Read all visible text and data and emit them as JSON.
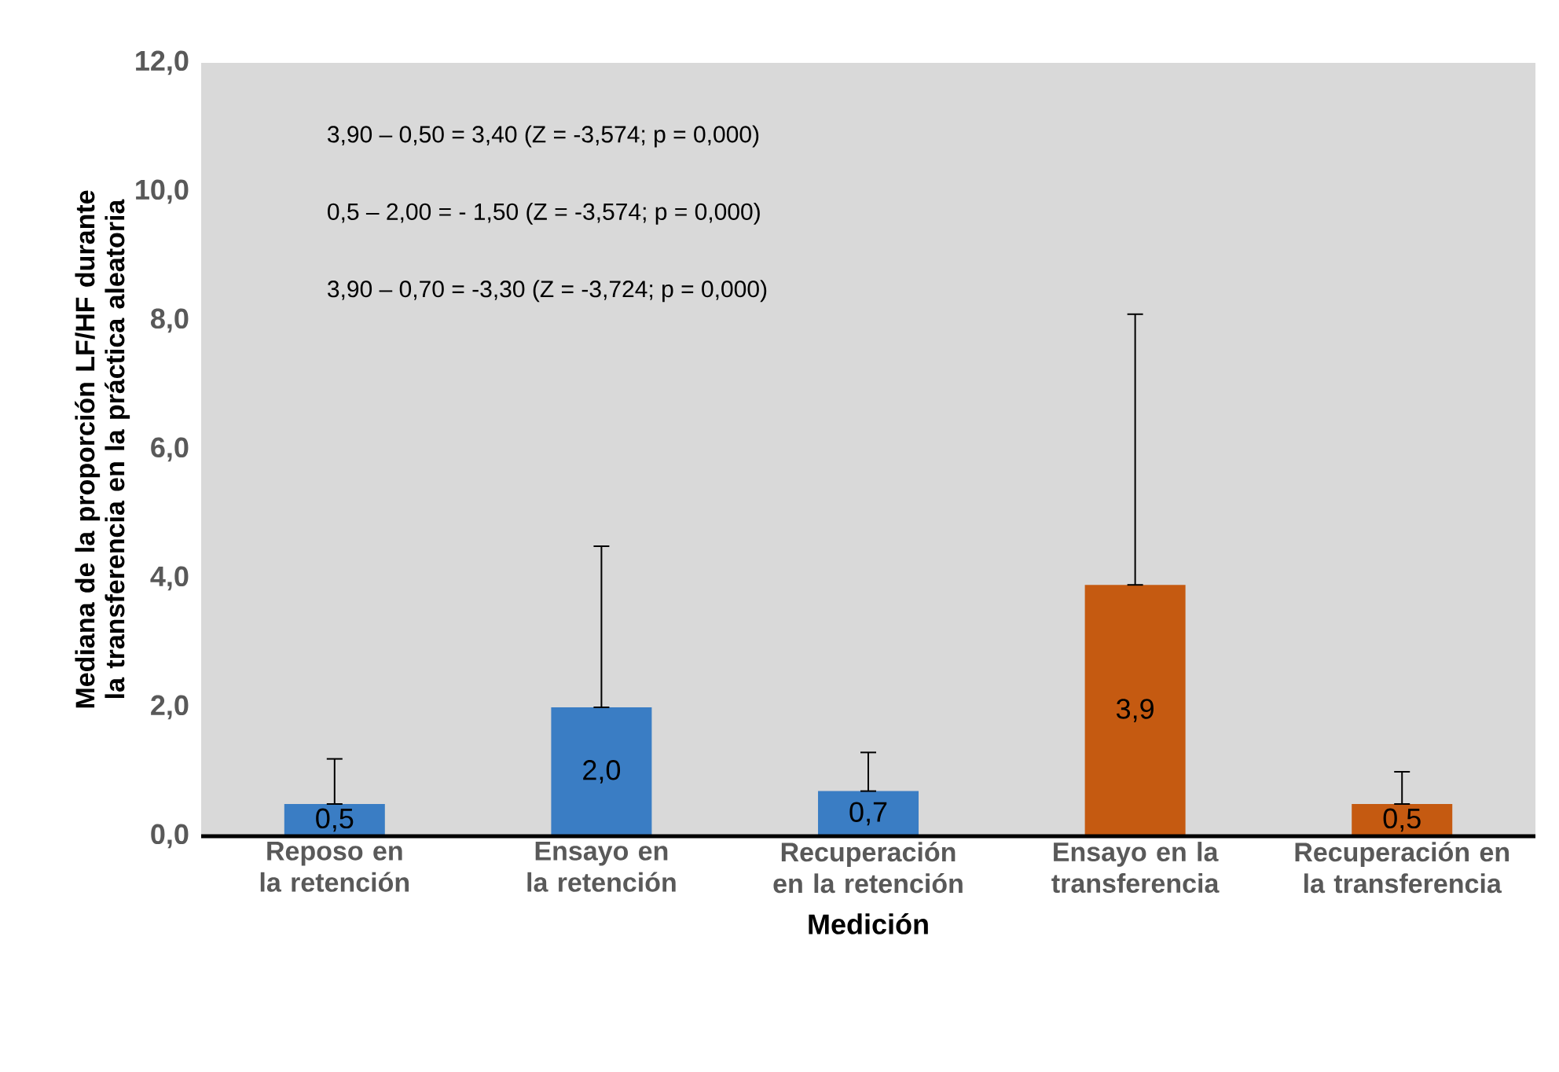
{
  "chart_data": {
    "type": "bar",
    "xlabel": "Medición",
    "ylabel": "Mediana de la proporción LF/HF durante la transferencia en la práctica aleatoria",
    "categories": [
      "Reposo en la retención",
      "Ensayo en la retención",
      "Recuperación en la retención",
      "Ensayo en la transferencia",
      "Recuperación en la transferencia"
    ],
    "values": [
      0.5,
      2.0,
      0.7,
      3.9,
      0.5
    ],
    "colors": [
      "#3a7dc4",
      "#3a7dc4",
      "#3a7dc4",
      "#c55a11",
      "#c55a11"
    ],
    "errors": [
      [
        0.5,
        1.2
      ],
      [
        2.0,
        4.5
      ],
      [
        0.7,
        1.3
      ],
      [
        3.9,
        8.1
      ],
      [
        0.5,
        1.0
      ]
    ],
    "value_labels": [
      "0,5",
      "2,0",
      "0,7",
      "3,9",
      "0,5"
    ],
    "ylim": [
      0,
      12
    ],
    "yticks": [
      {
        "value": 0,
        "label": "0,0"
      },
      {
        "value": 2,
        "label": "2,0"
      },
      {
        "value": 4,
        "label": "4,0"
      },
      {
        "value": 6,
        "label": "6,0"
      },
      {
        "value": 8,
        "label": "8,0"
      },
      {
        "value": 10,
        "label": "10,0"
      },
      {
        "value": 12,
        "label": "12,0"
      }
    ],
    "annotations": [
      "3,90 – 0,50 = 3,40 (Z = -3,574; p = 0,000)",
      "0,5 – 2,00 = - 1,50 (Z = -3,574; p = 0,000)",
      "3,90 – 0,70 = -3,30 (Z = -3,724; p = 0,000)"
    ]
  }
}
